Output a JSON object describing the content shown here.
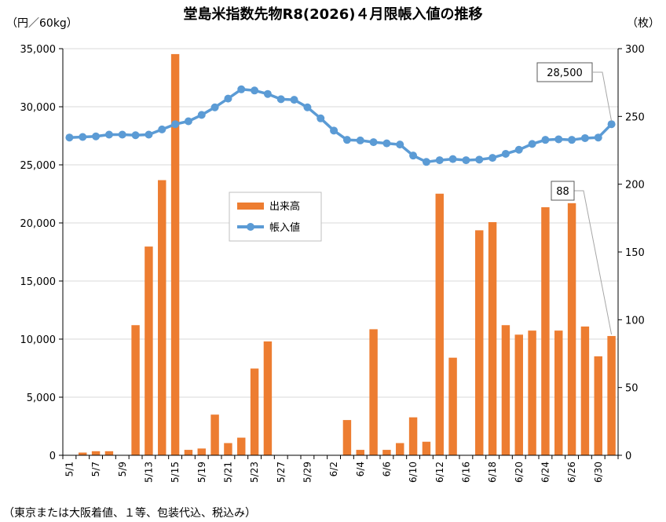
{
  "chart_data": {
    "type": "bar+line",
    "title": "堂島米指数先物R8(2026)４月限帳入値の推移",
    "left_unit": "（円／60kg）",
    "right_unit": "（枚）",
    "note": "（東京または大阪着値、１等、包装代込、税込み）",
    "left_axis": {
      "min": 0,
      "max": 35000,
      "step": 5000,
      "tick_labels": [
        "0",
        "5,000",
        "10,000",
        "15,000",
        "20,000",
        "25,000",
        "30,000",
        "35,000"
      ]
    },
    "right_axis": {
      "min": 0,
      "max": 300,
      "step": 50,
      "tick_labels": [
        "0",
        "50",
        "100",
        "150",
        "200",
        "250",
        "300"
      ]
    },
    "x_tick_labels": [
      "5/1",
      "5/7",
      "5/9",
      "5/13",
      "5/15",
      "5/19",
      "5/21",
      "5/23",
      "5/27",
      "5/29",
      "6/2",
      "6/4",
      "6/6",
      "6/10",
      "6/12",
      "6/16",
      "6/18",
      "6/20",
      "6/24",
      "6/26",
      "6/30"
    ],
    "legend": [
      "出来高",
      "帳入値"
    ],
    "colors": {
      "volume": "#ED7D31",
      "price": "#5B9BD5",
      "grid": "#d9d9d9"
    },
    "series": [
      {
        "name": "出来高",
        "axis": "right",
        "type": "bar",
        "values": [
          0,
          2,
          3,
          3,
          0,
          96,
          154,
          203,
          296,
          4,
          5,
          30,
          9,
          13,
          64,
          84,
          0,
          0,
          0,
          0,
          0,
          26,
          4,
          93,
          4,
          9,
          28,
          10,
          193,
          72,
          0,
          166,
          172,
          96,
          89,
          92,
          183,
          92,
          186,
          95,
          73,
          88
        ]
      },
      {
        "name": "帳入値",
        "axis": "left",
        "type": "line",
        "values": [
          27350,
          27400,
          27450,
          27600,
          27600,
          27550,
          27600,
          28050,
          28500,
          28750,
          29300,
          29950,
          30700,
          31500,
          31400,
          31100,
          30650,
          30600,
          29950,
          29000,
          27950,
          27150,
          27100,
          26950,
          26850,
          26750,
          25800,
          25250,
          25400,
          25500,
          25400,
          25450,
          25600,
          25950,
          26300,
          26800,
          27150,
          27200,
          27150,
          27300,
          27350,
          28500
        ]
      }
    ],
    "callouts": [
      {
        "label": "28,500",
        "series": "帳入値",
        "index": 41
      },
      {
        "label": "88",
        "series": "出来高",
        "index": 41
      }
    ]
  }
}
